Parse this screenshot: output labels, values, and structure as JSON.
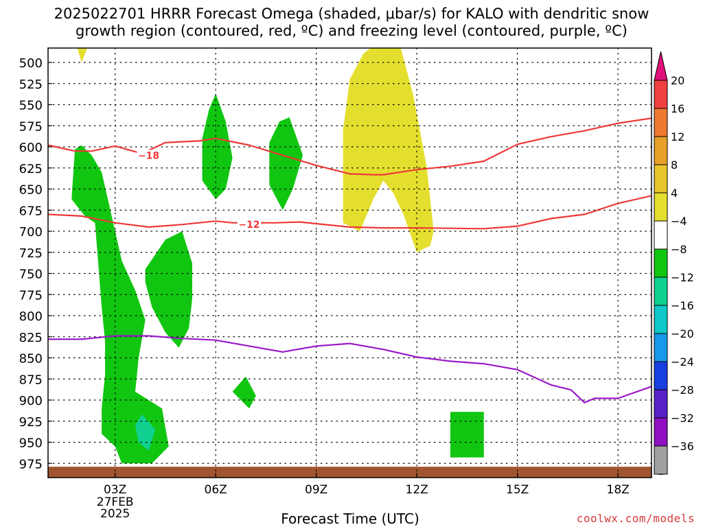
{
  "header": {
    "title_line1": "2025022701 HRRR Forecast Omega (shaded, μbar/s) for KALO with dendritic snow",
    "title_line2": "growth region (contoured, red, ºC) and freezing level (contoured, purple, ºC)"
  },
  "footer": {
    "x_axis_label": "Forecast Time (UTC)",
    "credit": "coolwx.com/models"
  },
  "chart_data": {
    "type": "contour",
    "x_axis": {
      "label": "Forecast Time (UTC)",
      "range_hours": [
        1,
        19
      ],
      "ticks": [
        {
          "hour": 3,
          "label": "03Z",
          "sublabels": [
            "27FEB",
            "2025"
          ]
        },
        {
          "hour": 6,
          "label": "06Z"
        },
        {
          "hour": 9,
          "label": "09Z"
        },
        {
          "hour": 12,
          "label": "12Z"
        },
        {
          "hour": 15,
          "label": "15Z"
        },
        {
          "hour": 18,
          "label": "18Z"
        }
      ]
    },
    "y_axis": {
      "units": "mb",
      "range": [
        480,
        985
      ],
      "inverted": true,
      "ticks": [
        500,
        525,
        550,
        575,
        600,
        625,
        650,
        675,
        700,
        725,
        750,
        775,
        800,
        825,
        850,
        875,
        900,
        925,
        950,
        975
      ]
    },
    "colorbar": {
      "labels": [
        20,
        16,
        12,
        8,
        4,
        -4,
        -8,
        -12,
        -16,
        -20,
        -24,
        -28,
        -32,
        -36
      ],
      "colors": [
        "#f04040",
        "#f07830",
        "#e8a028",
        "#e6c42a",
        "#e4df2e",
        "#ffffff",
        "#11c611",
        "#10d090",
        "#10c8c8",
        "#1898e8",
        "#1840e0",
        "#5820c8",
        "#8e10c0",
        "#a0a0a0"
      ],
      "top_arrow_color": "#e0107a",
      "bottom_arrow_color": "#000000"
    },
    "shaded_regions": [
      {
        "name": "green-a",
        "color": "#11c611",
        "points": [
          [
            1.7,
            662
          ],
          [
            1.8,
            603
          ],
          [
            2.0,
            598
          ],
          [
            2.3,
            610
          ],
          [
            2.6,
            630
          ],
          [
            3.0,
            700
          ],
          [
            3.2,
            735
          ],
          [
            3.6,
            770
          ],
          [
            3.9,
            805
          ],
          [
            3.7,
            850
          ],
          [
            3.6,
            890
          ],
          [
            4.4,
            910
          ],
          [
            4.6,
            955
          ],
          [
            4.1,
            975
          ],
          [
            3.2,
            975
          ],
          [
            3.0,
            955
          ],
          [
            2.6,
            940
          ],
          [
            2.6,
            910
          ],
          [
            2.7,
            870
          ],
          [
            2.7,
            830
          ],
          [
            2.6,
            790
          ],
          [
            2.5,
            740
          ],
          [
            2.4,
            690
          ],
          [
            2.1,
            682
          ]
        ]
      },
      {
        "name": "green-b",
        "color": "#11c611",
        "points": [
          [
            3.9,
            745
          ],
          [
            4.5,
            710
          ],
          [
            5.0,
            700
          ],
          [
            5.3,
            738
          ],
          [
            5.3,
            780
          ],
          [
            5.2,
            815
          ],
          [
            4.9,
            838
          ],
          [
            4.5,
            820
          ],
          [
            4.1,
            790
          ],
          [
            3.9,
            760
          ]
        ]
      },
      {
        "name": "green-c",
        "color": "#11c611",
        "points": [
          [
            5.6,
            590
          ],
          [
            5.8,
            556
          ],
          [
            6.0,
            537
          ],
          [
            6.3,
            570
          ],
          [
            6.5,
            613
          ],
          [
            6.3,
            650
          ],
          [
            6.0,
            662
          ],
          [
            5.6,
            640
          ],
          [
            5.6,
            610
          ]
        ]
      },
      {
        "name": "green-d",
        "color": "#11c611",
        "points": [
          [
            7.6,
            595
          ],
          [
            7.9,
            570
          ],
          [
            8.2,
            565
          ],
          [
            8.6,
            610
          ],
          [
            8.3,
            650
          ],
          [
            8.0,
            675
          ],
          [
            7.6,
            645
          ]
        ]
      },
      {
        "name": "green-e",
        "color": "#11c611",
        "points": [
          [
            6.5,
            890
          ],
          [
            6.9,
            872
          ],
          [
            7.2,
            895
          ],
          [
            7.0,
            910
          ]
        ]
      },
      {
        "name": "green-f",
        "color": "#11c611",
        "points": [
          [
            13.0,
            914
          ],
          [
            14.0,
            914
          ],
          [
            14.0,
            968
          ],
          [
            13.0,
            968
          ]
        ]
      },
      {
        "name": "teal-g",
        "color": "#10d090",
        "points": [
          [
            3.6,
            930
          ],
          [
            3.8,
            917
          ],
          [
            4.2,
            935
          ],
          [
            4.0,
            960
          ],
          [
            3.7,
            950
          ]
        ]
      },
      {
        "name": "yellow-h",
        "color": "#e4df2e",
        "points": [
          [
            10.0,
            520
          ],
          [
            10.4,
            490
          ],
          [
            10.7,
            480
          ],
          [
            11.5,
            480
          ],
          [
            11.9,
            540
          ],
          [
            12.3,
            625
          ],
          [
            12.5,
            700
          ],
          [
            12.4,
            717
          ],
          [
            12.0,
            725
          ],
          [
            11.6,
            680
          ],
          [
            11.3,
            655
          ],
          [
            11.0,
            640
          ],
          [
            10.7,
            662
          ],
          [
            10.3,
            700
          ],
          [
            9.8,
            690
          ],
          [
            9.8,
            640
          ],
          [
            9.8,
            580
          ]
        ]
      },
      {
        "name": "yellow-i",
        "color": "#e4df2e",
        "points": [
          [
            1.85,
            480
          ],
          [
            2.2,
            480
          ],
          [
            2.0,
            500
          ]
        ]
      }
    ],
    "contours": [
      {
        "name": "dgz-minus-18",
        "label": "−18",
        "label_at": [
          4.0,
          610
        ],
        "color": "#ee3838",
        "points": [
          [
            1,
            598
          ],
          [
            1.8,
            605
          ],
          [
            2.3,
            605
          ],
          [
            3.0,
            599
          ],
          [
            3.8,
            608
          ],
          [
            4.5,
            595
          ],
          [
            5.5,
            593
          ],
          [
            6.0,
            590
          ],
          [
            7.0,
            598
          ],
          [
            8.0,
            610
          ],
          [
            9.0,
            622
          ],
          [
            10.0,
            632
          ],
          [
            10.7,
            633
          ],
          [
            11.0,
            633
          ],
          [
            12.0,
            627
          ],
          [
            13.0,
            623
          ],
          [
            14.0,
            617
          ],
          [
            15.0,
            597
          ],
          [
            16.0,
            588
          ],
          [
            17.0,
            581
          ],
          [
            18.0,
            572
          ],
          [
            19,
            566
          ]
        ]
      },
      {
        "name": "dgz-minus-12",
        "label": "−12",
        "label_at": [
          7.0,
          692
        ],
        "color": "#ee3838",
        "points": [
          [
            1,
            680
          ],
          [
            2.0,
            682
          ],
          [
            3.0,
            690
          ],
          [
            4.0,
            695
          ],
          [
            5.0,
            692
          ],
          [
            6.0,
            688
          ],
          [
            6.5,
            690
          ],
          [
            7.8,
            690
          ],
          [
            8.5,
            689
          ],
          [
            10.0,
            695
          ],
          [
            11.0,
            696
          ],
          [
            12.0,
            696
          ],
          [
            14.0,
            697
          ],
          [
            15.0,
            694
          ],
          [
            16.0,
            685
          ],
          [
            17.0,
            680
          ],
          [
            18.0,
            667
          ],
          [
            19,
            658
          ]
        ]
      },
      {
        "name": "freezing-level-0",
        "label": "",
        "color": "#9a18c8",
        "points": [
          [
            1,
            828
          ],
          [
            2.0,
            828
          ],
          [
            3.0,
            824
          ],
          [
            4.0,
            824
          ],
          [
            5.0,
            827
          ],
          [
            6.0,
            829
          ],
          [
            7.0,
            836
          ],
          [
            8.0,
            843
          ],
          [
            9.0,
            836
          ],
          [
            10.0,
            833
          ],
          [
            11.0,
            840
          ],
          [
            12.0,
            849
          ],
          [
            13.0,
            854
          ],
          [
            14.0,
            857
          ],
          [
            15.0,
            864
          ],
          [
            16.0,
            882
          ],
          [
            16.6,
            888
          ],
          [
            17.0,
            903
          ],
          [
            17.3,
            898
          ],
          [
            18.0,
            898
          ],
          [
            19,
            884
          ]
        ]
      }
    ],
    "terrain": {
      "color": "#a05530",
      "top_mb": 979,
      "bottom_mb": 985
    }
  }
}
